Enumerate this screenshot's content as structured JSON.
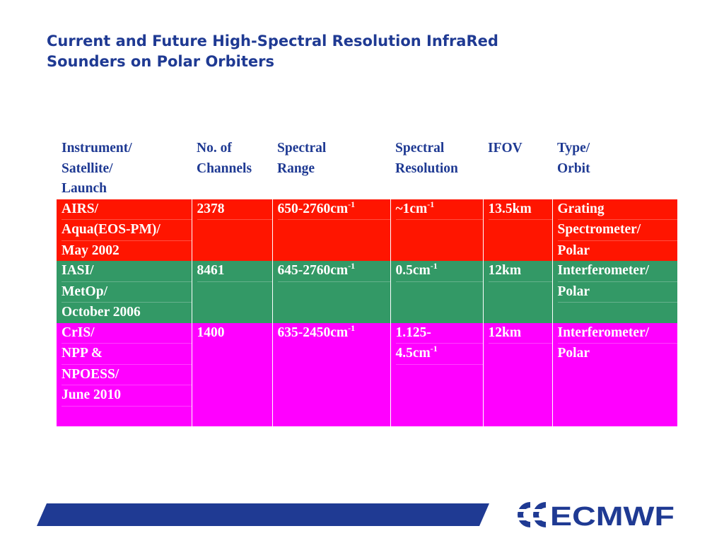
{
  "title": {
    "line1": "Current and Future High-Spectral Resolution InfraRed",
    "line2": "Sounders on Polar Orbiters"
  },
  "table": {
    "headers": [
      [
        "Instrument/",
        "Satellite/",
        "Launch"
      ],
      [
        "No. of",
        "Channels"
      ],
      [
        "Spectral",
        "Range"
      ],
      [
        "Spectral",
        "Resolution"
      ],
      [
        "IFOV"
      ],
      [
        "Type/",
        "Orbit"
      ]
    ],
    "rows": [
      {
        "color": "#ff1500",
        "instrument": [
          "AIRS/",
          "Aqua(EOS-PM)/",
          "May 2002"
        ],
        "channels": "2378",
        "range": "650-2760cm",
        "range_sup": "-1",
        "resolution": [
          "~1cm"
        ],
        "resolution_sup": "-1",
        "ifov": "13.5km",
        "type": [
          "Grating",
          "Spectrometer/",
          "Polar"
        ]
      },
      {
        "color": "#339966",
        "instrument": [
          "IASI/",
          "MetOp/",
          "October 2006"
        ],
        "channels": "8461",
        "range": "645-2760cm",
        "range_sup": "-1",
        "resolution": [
          "0.5cm"
        ],
        "resolution_sup": "-1",
        "ifov": "12km",
        "type": [
          "Interferometer/",
          "Polar"
        ]
      },
      {
        "color": "#ff00ff",
        "instrument": [
          "CrIS/",
          "NPP &",
          "NPOESS/",
          "June 2010"
        ],
        "channels": "1400",
        "range": "635-2450cm",
        "range_sup": "-1",
        "resolution": [
          "1.125-",
          "4.5cm"
        ],
        "resolution_sup": "-1",
        "ifov": "12km",
        "type": [
          "Interferometer/",
          "Polar"
        ]
      }
    ]
  },
  "footer": {
    "logo_text": "ECMWF",
    "band_color": "#1f3a93",
    "logo_color": "#1f3a93"
  }
}
